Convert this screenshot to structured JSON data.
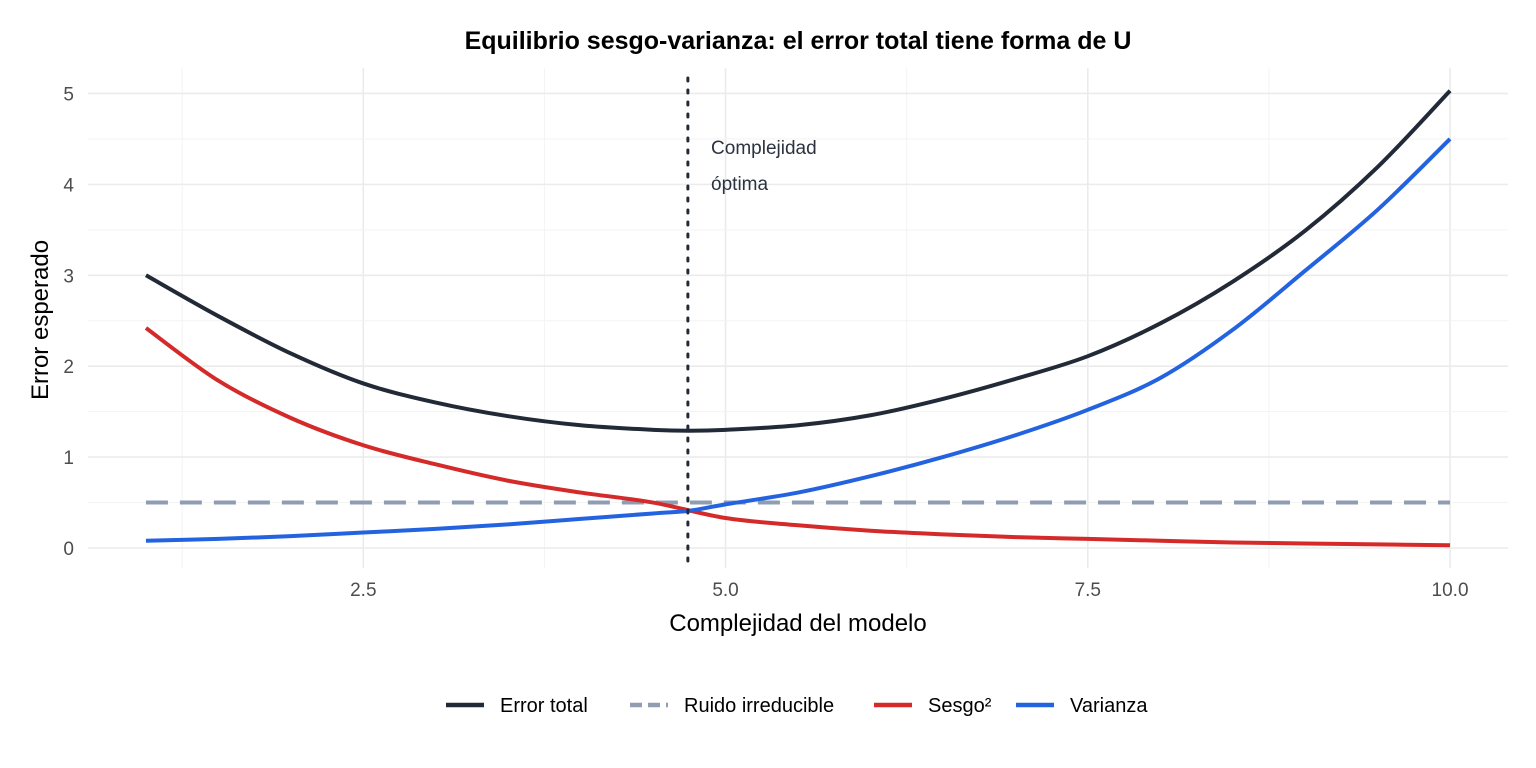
{
  "chart_data": {
    "type": "line",
    "title": "Equilibrio sesgo-varianza: el error total tiene forma de U",
    "xlabel": "Complejidad del modelo",
    "ylabel": "Error esperado",
    "xlim": [
      0.6,
      10.4
    ],
    "ylim": [
      -0.22,
      5.28
    ],
    "x_ticks": [
      2.5,
      5.0,
      7.5,
      10.0
    ],
    "x_tick_labels": [
      "2.5",
      "5.0",
      "7.5",
      "10.0"
    ],
    "y_ticks": [
      0,
      1,
      2,
      3,
      4,
      5
    ],
    "y_tick_labels": [
      "0",
      "1",
      "2",
      "3",
      "4",
      "5"
    ],
    "grid": true,
    "legend_position": "bottom",
    "series": [
      {
        "name": "Error total",
        "color": "#222a38",
        "style": "solid",
        "x": [
          1,
          1.5,
          2,
          2.5,
          3,
          3.5,
          4,
          4.5,
          4.75,
          5,
          5.5,
          6,
          6.5,
          7,
          7.5,
          8,
          8.5,
          9,
          9.5,
          10
        ],
        "y": [
          3.0,
          2.55,
          2.14,
          1.81,
          1.6,
          1.45,
          1.35,
          1.3,
          1.29,
          1.3,
          1.35,
          1.46,
          1.64,
          1.86,
          2.11,
          2.47,
          2.93,
          3.49,
          4.19,
          5.03
        ]
      },
      {
        "name": "Ruido irreducible",
        "color": "#8f9db3",
        "style": "dashed",
        "x": [
          1,
          10
        ],
        "y": [
          0.5,
          0.5
        ]
      },
      {
        "name": "Sesgo²",
        "color": "#d52a2a",
        "style": "solid",
        "x": [
          1,
          1.5,
          2,
          2.5,
          3,
          3.5,
          4,
          4.5,
          5,
          5.5,
          6,
          6.5,
          7,
          7.5,
          8,
          8.5,
          9,
          9.5,
          10
        ],
        "y": [
          2.42,
          1.84,
          1.43,
          1.13,
          0.92,
          0.74,
          0.61,
          0.5,
          0.33,
          0.25,
          0.19,
          0.15,
          0.12,
          0.1,
          0.08,
          0.06,
          0.05,
          0.04,
          0.03
        ]
      },
      {
        "name": "Varianza",
        "color": "#2463e0",
        "style": "solid",
        "x": [
          1,
          1.5,
          2,
          2.5,
          3,
          3.5,
          4,
          4.5,
          4.75,
          5,
          5.5,
          6,
          6.5,
          7,
          7.5,
          8,
          8.5,
          9,
          9.5,
          10
        ],
        "y": [
          0.08,
          0.1,
          0.13,
          0.17,
          0.21,
          0.26,
          0.32,
          0.38,
          0.41,
          0.48,
          0.61,
          0.79,
          1.0,
          1.24,
          1.52,
          1.87,
          2.4,
          3.05,
          3.72,
          4.5
        ]
      }
    ],
    "vline": {
      "x": 4.74,
      "style": "dotted",
      "color": "#222a38"
    },
    "annotation": {
      "lines": [
        "Complejidad",
        "óptima"
      ],
      "x": 4.9,
      "y": 4.4
    }
  }
}
